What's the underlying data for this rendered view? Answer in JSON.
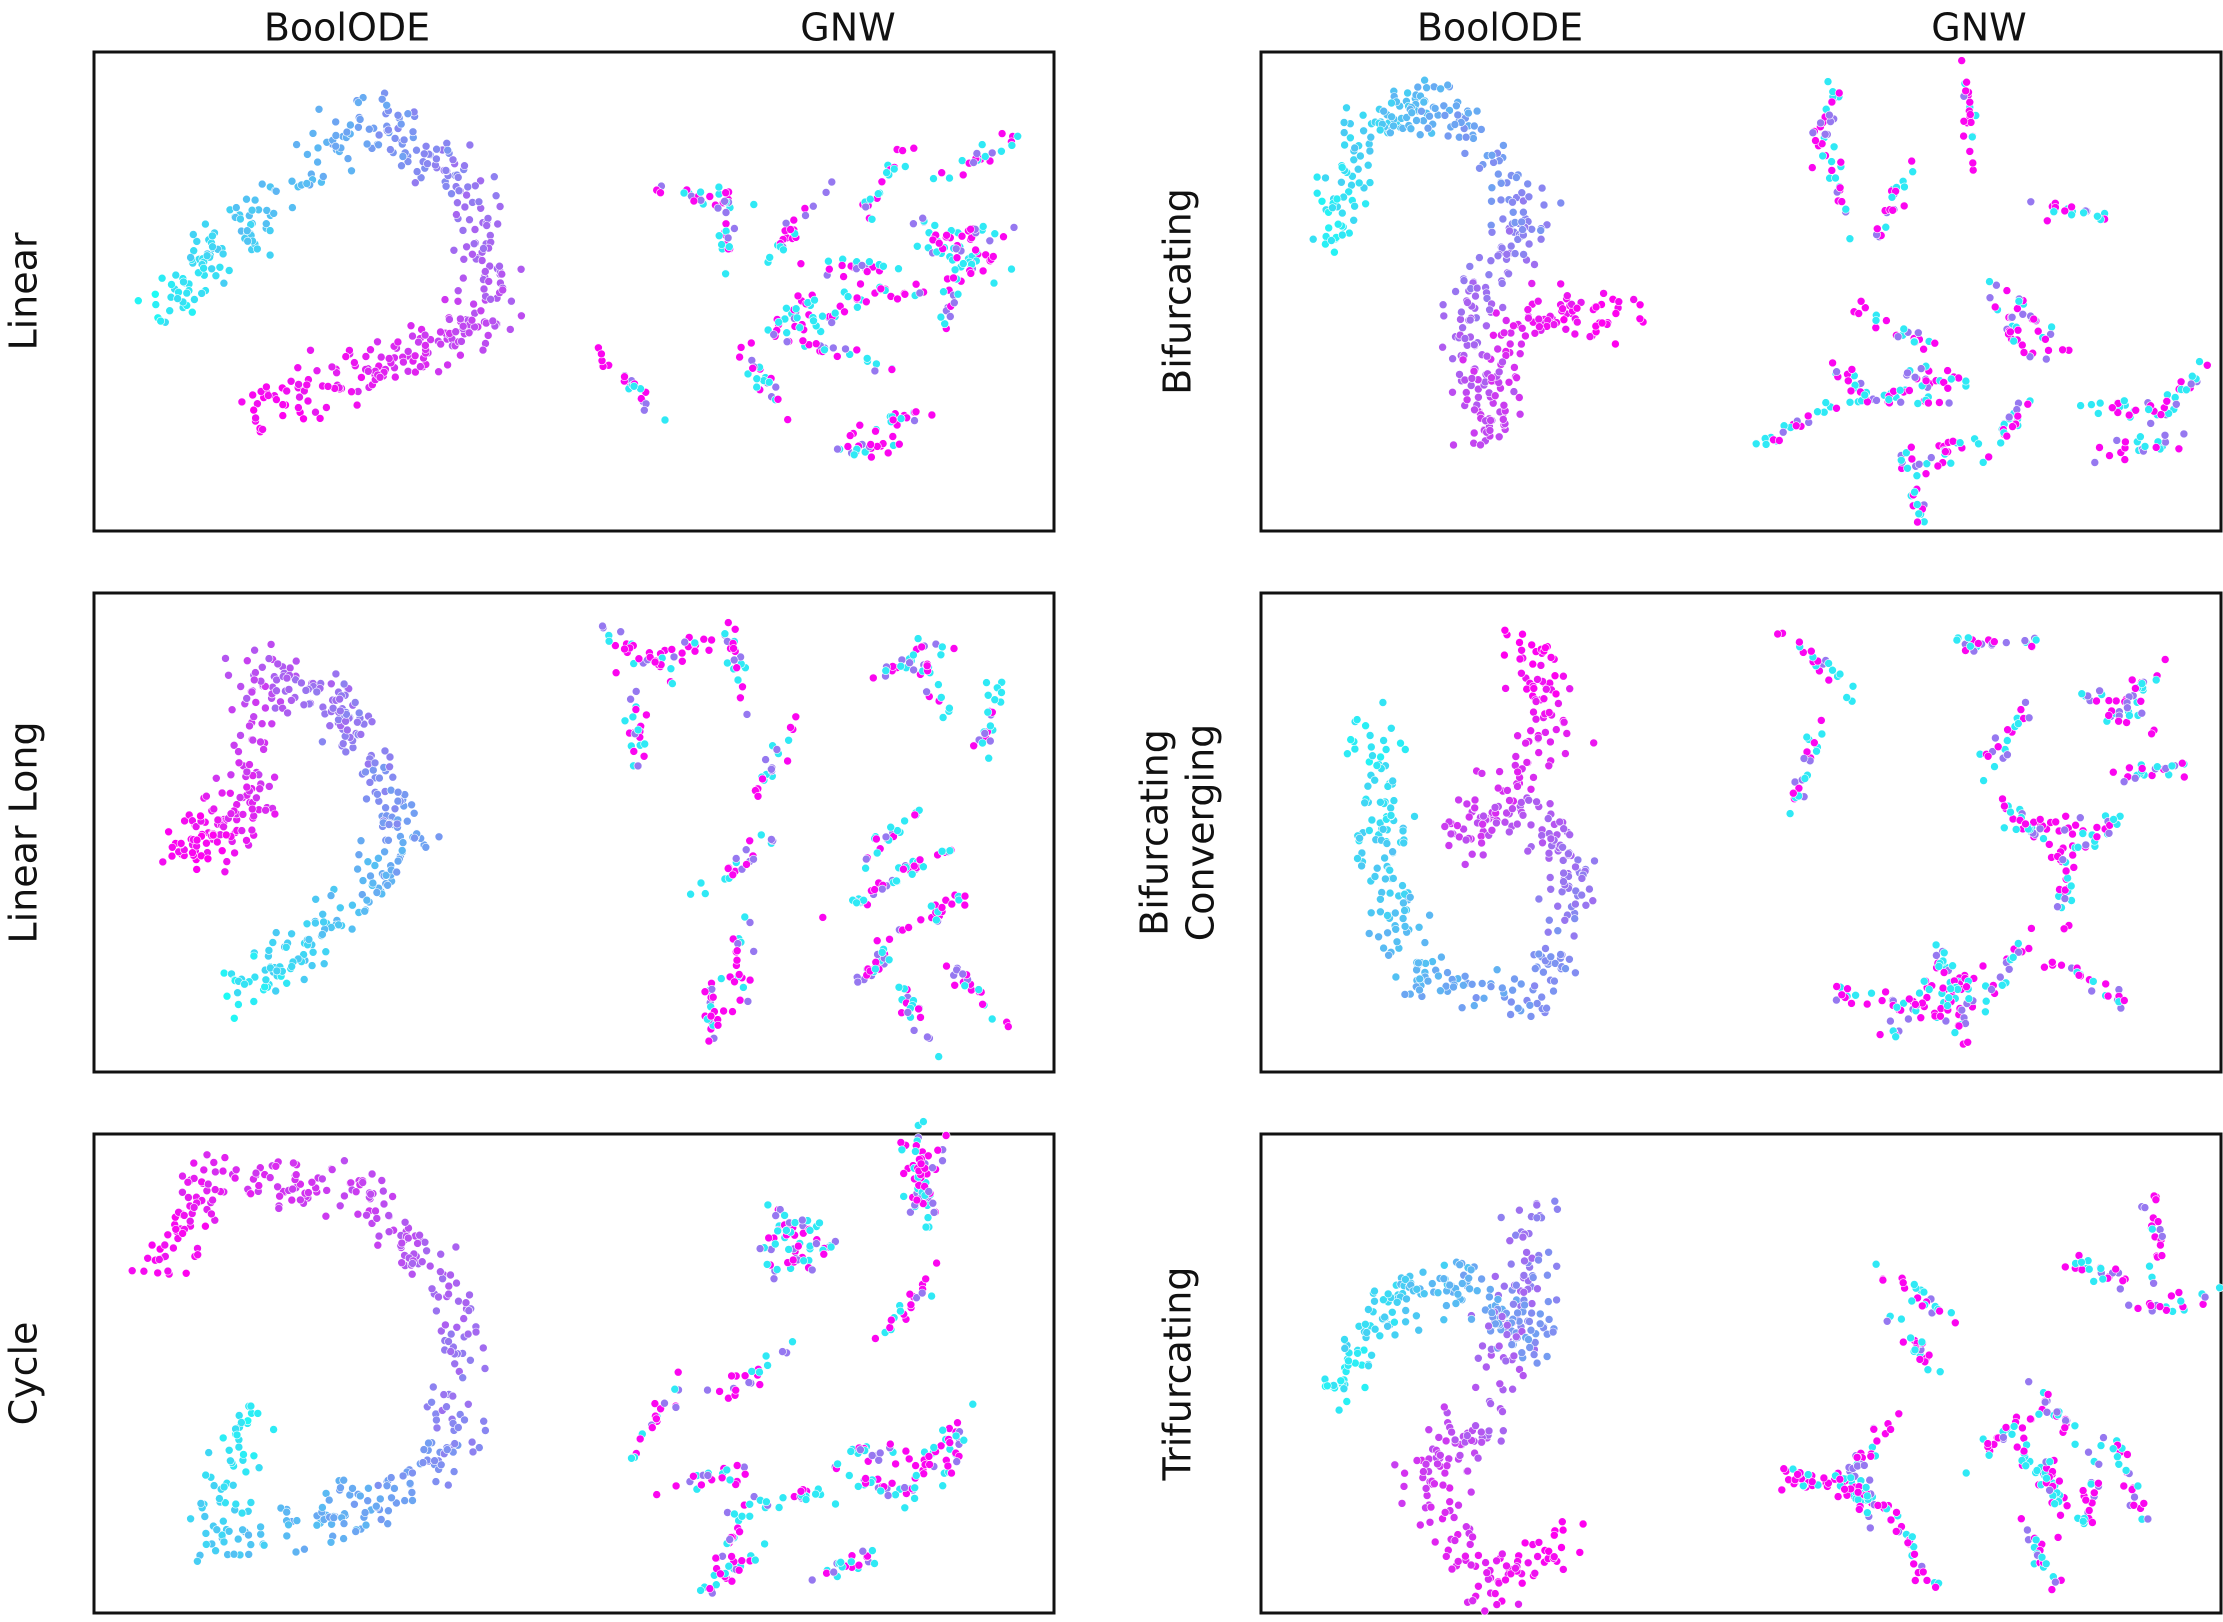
{
  "column_headers": [
    "BoolODE",
    "GNW",
    "BoolODE",
    "GNW"
  ],
  "panels": [
    {
      "lines": [
        "Linear"
      ]
    },
    {
      "lines": [
        "Bifurcating"
      ]
    },
    {
      "lines": [
        "Linear Long"
      ]
    },
    {
      "lines": [
        "Bifurcating",
        "Converging"
      ]
    },
    {
      "lines": [
        "Cycle"
      ]
    },
    {
      "lines": [
        "Trifurcating"
      ]
    }
  ]
}
